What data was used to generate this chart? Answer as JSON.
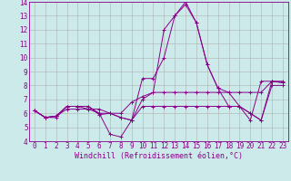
{
  "xlabel": "Windchill (Refroidissement éolien,°C)",
  "xlim": [
    -0.5,
    23.5
  ],
  "ylim": [
    4,
    14
  ],
  "yticks": [
    4,
    5,
    6,
    7,
    8,
    9,
    10,
    11,
    12,
    13,
    14
  ],
  "xticks": [
    0,
    1,
    2,
    3,
    4,
    5,
    6,
    7,
    8,
    9,
    10,
    11,
    12,
    13,
    14,
    15,
    16,
    17,
    18,
    19,
    20,
    21,
    22,
    23
  ],
  "background_color": "#cceaea",
  "grid_color": "#b0b0b0",
  "line_color": "#880088",
  "series": [
    [
      6.2,
      5.7,
      5.7,
      6.5,
      6.5,
      6.5,
      6.0,
      4.5,
      4.3,
      5.5,
      8.5,
      8.5,
      10.0,
      13.0,
      14.0,
      12.5,
      9.5,
      7.8,
      6.5,
      6.5,
      5.5,
      8.3,
      8.3,
      8.2
    ],
    [
      6.2,
      5.7,
      5.8,
      6.5,
      6.5,
      6.5,
      5.9,
      6.0,
      6.0,
      6.8,
      7.2,
      7.5,
      12.0,
      13.0,
      13.8,
      12.5,
      9.5,
      7.8,
      7.5,
      6.5,
      6.0,
      5.5,
      8.3,
      8.3
    ],
    [
      6.2,
      5.7,
      5.8,
      6.5,
      6.5,
      6.3,
      6.3,
      6.0,
      5.7,
      5.5,
      7.0,
      7.5,
      7.5,
      7.5,
      7.5,
      7.5,
      7.5,
      7.5,
      7.5,
      7.5,
      7.5,
      7.5,
      8.3,
      8.2
    ],
    [
      6.2,
      5.7,
      5.8,
      6.3,
      6.3,
      6.3,
      6.0,
      6.0,
      5.7,
      5.5,
      6.5,
      6.5,
      6.5,
      6.5,
      6.5,
      6.5,
      6.5,
      6.5,
      6.5,
      6.5,
      6.0,
      5.5,
      8.0,
      8.0
    ]
  ],
  "dpi": 100,
  "figsize": [
    3.2,
    2.0
  ],
  "tick_fontsize": 5.5,
  "xlabel_fontsize": 6.0
}
